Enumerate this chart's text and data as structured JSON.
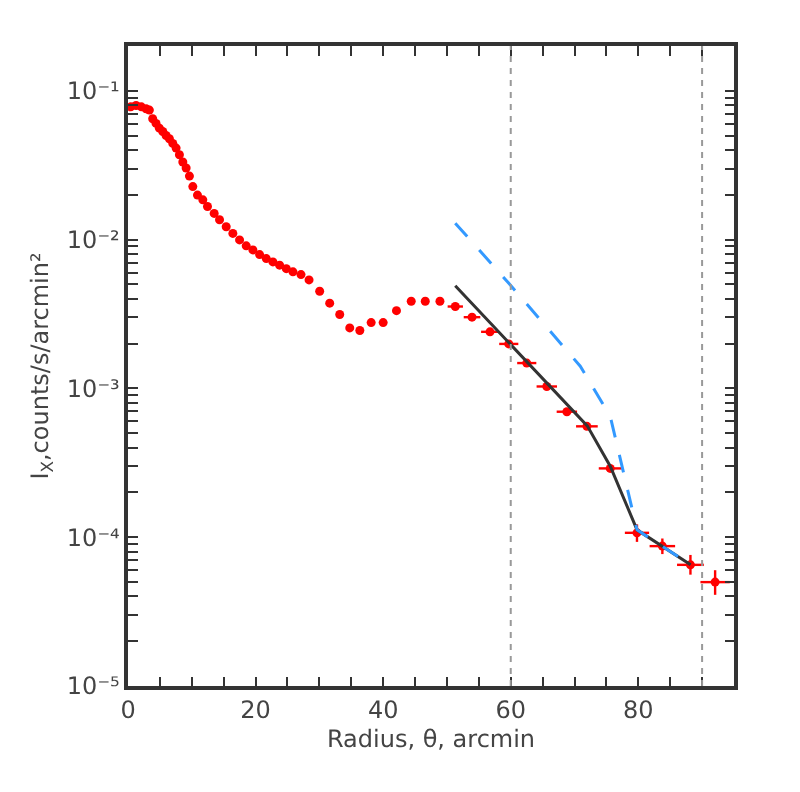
{
  "chart_data": {
    "type": "scatter",
    "xlabel": "Radius, θ, arcmin",
    "ylabel": "I$_{X}$,counts/s/arcmin²",
    "log": "y",
    "xlim": [
      0,
      95
    ],
    "ylim": [
      1e-05,
      0.2
    ],
    "xticks": [
      0,
      {
        "value": 5,
        "label": null
      },
      {
        "value": 10,
        "label": null
      },
      {
        "value": 15,
        "label": null
      },
      20,
      {
        "value": 25,
        "label": null
      },
      {
        "value": 30,
        "label": null
      },
      {
        "value": 35,
        "label": null
      },
      40,
      {
        "value": 45,
        "label": null
      },
      {
        "value": 50,
        "label": null
      },
      {
        "value": 55,
        "label": null
      },
      60,
      {
        "value": 65,
        "label": null
      },
      {
        "value": 70,
        "label": null
      },
      {
        "value": 75,
        "label": null
      },
      80,
      {
        "value": 85,
        "label": null
      },
      {
        "value": 90,
        "label": null
      }
    ],
    "yticks": [
      {
        "value": 1e-05,
        "label": "10⁻⁵"
      },
      {
        "value": 2e-05,
        "label": null
      },
      {
        "value": 3e-05,
        "label": null
      },
      {
        "value": 4e-05,
        "label": null
      },
      {
        "value": 5e-05,
        "label": null
      },
      {
        "value": 6e-05,
        "label": null
      },
      {
        "value": 7e-05,
        "label": null
      },
      {
        "value": 8e-05,
        "label": null
      },
      {
        "value": 9e-05,
        "label": null
      },
      {
        "value": 0.0001,
        "label": "10⁻⁴"
      },
      {
        "value": 0.0002,
        "label": null
      },
      {
        "value": 0.0003,
        "label": null
      },
      {
        "value": 0.0004,
        "label": null
      },
      {
        "value": 0.0005,
        "label": null
      },
      {
        "value": 0.0006,
        "label": null
      },
      {
        "value": 0.0007,
        "label": null
      },
      {
        "value": 0.0008,
        "label": null
      },
      {
        "value": 0.0009,
        "label": null
      },
      {
        "value": 0.001,
        "label": "10⁻³"
      },
      {
        "value": 0.002,
        "label": null
      },
      {
        "value": 0.003,
        "label": null
      },
      {
        "value": 0.004,
        "label": null
      },
      {
        "value": 0.005,
        "label": null
      },
      {
        "value": 0.006,
        "label": null
      },
      {
        "value": 0.007,
        "label": null
      },
      {
        "value": 0.008,
        "label": null
      },
      {
        "value": 0.009,
        "label": null
      },
      {
        "value": 0.01,
        "label": "10⁻²"
      },
      {
        "value": 0.02,
        "label": null
      },
      {
        "value": 0.03,
        "label": null
      },
      {
        "value": 0.04,
        "label": null
      },
      {
        "value": 0.05,
        "label": null
      },
      {
        "value": 0.06,
        "label": null
      },
      {
        "value": 0.07,
        "label": null
      },
      {
        "value": 0.08,
        "label": null
      },
      {
        "value": 0.09,
        "label": null
      },
      {
        "value": 0.1,
        "label": "10⁻¹"
      },
      {
        "value": 0.2,
        "label": null
      }
    ],
    "ref_lines": [
      {
        "axis": "x",
        "value": 60,
        "color": "#999999",
        "line_style": "dotted"
      },
      {
        "axis": "x",
        "value": 90,
        "color": "#999999",
        "line_style": "dotted"
      }
    ],
    "series": [
      {
        "color": "#ff0000",
        "marker": "circle",
        "x": [
          0.42,
          1.26,
          2.09,
          2.83,
          3.35,
          3.87,
          4.4,
          4.92,
          5.45,
          5.97,
          6.49,
          7.02,
          7.54,
          8.06,
          8.59,
          9.11,
          9.63,
          10.16,
          10.89,
          11.73,
          12.46,
          13.51,
          14.35,
          15.39,
          16.44,
          17.49,
          18.53,
          19.58,
          20.63,
          21.68,
          22.72,
          23.77,
          24.82,
          25.86,
          27.12,
          28.38,
          30.05,
          31.62,
          33.19,
          34.76,
          36.34,
          38.12,
          40.0,
          42.09,
          44.4,
          46.6,
          48.9,
          51.31,
          53.93,
          56.75,
          59.69,
          62.51,
          65.65,
          68.8,
          71.94,
          75.6,
          79.79,
          83.77,
          88.17,
          92.04
        ],
        "values": [
          0.078,
          0.0797,
          0.078,
          0.0757,
          0.0742,
          0.0649,
          0.0604,
          0.0561,
          0.0533,
          0.0501,
          0.0476,
          0.0443,
          0.0412,
          0.0372,
          0.0332,
          0.0303,
          0.0267,
          0.0227,
          0.0199,
          0.0185,
          0.0167,
          0.015,
          0.0136,
          0.0122,
          0.011,
          0.00995,
          0.00908,
          0.00853,
          0.00793,
          0.00745,
          0.00708,
          0.00673,
          0.00638,
          0.00607,
          0.00582,
          0.00536,
          0.0045,
          0.00374,
          0.00314,
          0.00255,
          0.00245,
          0.00277,
          0.00277,
          0.00333,
          0.00385,
          0.00385,
          0.00385,
          0.00355,
          0.00301,
          0.0024,
          0.00199,
          0.00148,
          0.00103,
          0.000697,
          0.000556,
          0.00029,
          0.000107,
          8.71e-05,
          6.52e-05,
          4.99e-05
        ],
        "xerrors": [
          null,
          null,
          null,
          null,
          null,
          null,
          null,
          null,
          null,
          null,
          null,
          null,
          null,
          null,
          null,
          null,
          null,
          null,
          null,
          null,
          null,
          null,
          null,
          null,
          null,
          null,
          null,
          null,
          null,
          null,
          null,
          null,
          null,
          null,
          null,
          null,
          null,
          null,
          null,
          null,
          null,
          null,
          null,
          null,
          null,
          null,
          null,
          1.2,
          1.3,
          1.4,
          1.5,
          1.5,
          1.6,
          1.6,
          1.7,
          1.8,
          1.9,
          2.0,
          2.1,
          2.3
        ],
        "errors": [
          null,
          null,
          null,
          null,
          null,
          null,
          null,
          null,
          null,
          null,
          null,
          null,
          null,
          null,
          null,
          null,
          null,
          null,
          null,
          null,
          null,
          null,
          null,
          null,
          null,
          null,
          null,
          null,
          null,
          null,
          null,
          null,
          null,
          null,
          null,
          null,
          null,
          null,
          null,
          null,
          null,
          null,
          null,
          null,
          null,
          null,
          null,
          null,
          null,
          null,
          null,
          null,
          null,
          null,
          null,
          null,
          [
            9.3e-05,
            0.000122
          ],
          [
            7.7e-05,
            9.8e-05
          ],
          [
            5.6e-05,
            7.6e-05
          ],
          [
            4.1e-05,
            6e-05
          ]
        ]
      },
      {
        "type": "line",
        "color": "#333333",
        "line_style": "solid",
        "marker": "none",
        "x": [
          51.3,
          72.0,
          75.6,
          79.8,
          88.2
        ],
        "values": [
          0.0049,
          0.00056,
          0.0003,
          0.000112,
          6.52e-05
        ]
      },
      {
        "type": "line",
        "color": "#3399ff",
        "line_style": "dashed",
        "marker": "none",
        "x": [
          51.3,
          59.7,
          70.9,
          75.6,
          79.8,
          88.2
        ],
        "values": [
          0.0129,
          0.00509,
          0.00141,
          0.00065,
          0.000112,
          6.52e-05
        ]
      }
    ]
  }
}
